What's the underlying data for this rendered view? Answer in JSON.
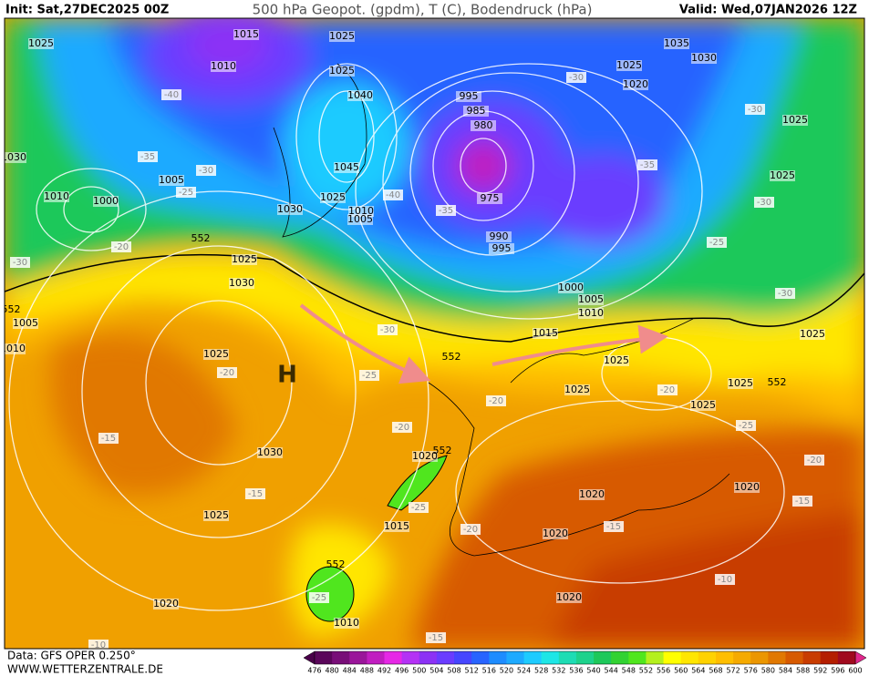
{
  "header": {
    "init": "Init: Sat,27DEC2025 00Z",
    "title": "500 hPa Geopot. (gpdm), T (C), Bodendruck (hPa)",
    "valid": "Valid: Wed,07JAN2026 12Z"
  },
  "map": {
    "high_label": "H",
    "isobar_labels": [
      "1025",
      "1015",
      "1010",
      "1025",
      "1025",
      "1040",
      "995",
      "985",
      "980",
      "975",
      "990",
      "995",
      "1045",
      "1025",
      "1030",
      "1010",
      "1005",
      "1010",
      "1000",
      "1005",
      "1030",
      "1035",
      "1030",
      "1025",
      "1020",
      "1025",
      "1025",
      "1000",
      "1005",
      "1010",
      "1015",
      "1025",
      "1030",
      "1005",
      "1010",
      "1025",
      "1025",
      "1025",
      "1025",
      "1025",
      "1025",
      "1030",
      "1020",
      "1025",
      "1015",
      "1020",
      "1020",
      "1020",
      "1020",
      "1020",
      "1010"
    ],
    "temperature_labels": [
      "-40",
      "-30",
      "-35",
      "-25",
      "-20",
      "-30",
      "-40",
      "-35",
      "-30",
      "-30",
      "-35",
      "-30",
      "-25",
      "-30",
      "-30",
      "-20",
      "-25",
      "-20",
      "-20",
      "-25",
      "-20",
      "-20",
      "-15",
      "-15",
      "-25",
      "-20",
      "-15",
      "-15",
      "-10",
      "-25",
      "-15",
      "-10"
    ],
    "contour_labels": [
      "552",
      "552",
      "552",
      "552",
      "552",
      "552"
    ]
  },
  "legend": {
    "ticks": [
      476,
      480,
      484,
      488,
      492,
      496,
      500,
      504,
      508,
      512,
      516,
      520,
      524,
      528,
      532,
      536,
      540,
      544,
      548,
      552,
      556,
      560,
      564,
      568,
      572,
      576,
      580,
      584,
      588,
      592,
      596,
      600
    ],
    "colors": [
      "#4a004a",
      "#5a065a",
      "#780e78",
      "#9a169a",
      "#c01ec0",
      "#e628e6",
      "#b432f5",
      "#8c32f5",
      "#6a3cff",
      "#4646ff",
      "#2864ff",
      "#1e8cff",
      "#1eaaff",
      "#1ecbff",
      "#1ee6e6",
      "#1edcb4",
      "#1ed28c",
      "#1ec85a",
      "#32d232",
      "#50e61e",
      "#b4f01e",
      "#ffff00",
      "#ffe600",
      "#ffd200",
      "#ffbe00",
      "#f5aa00",
      "#eb9600",
      "#e17800",
      "#d75a00",
      "#c83c00",
      "#b41e00",
      "#a00a1e",
      "#e0288c"
    ]
  },
  "footer": {
    "data": "Data: GFS OPER 0.250°",
    "site": "WWW.WETTERZENTRALE.DE"
  }
}
